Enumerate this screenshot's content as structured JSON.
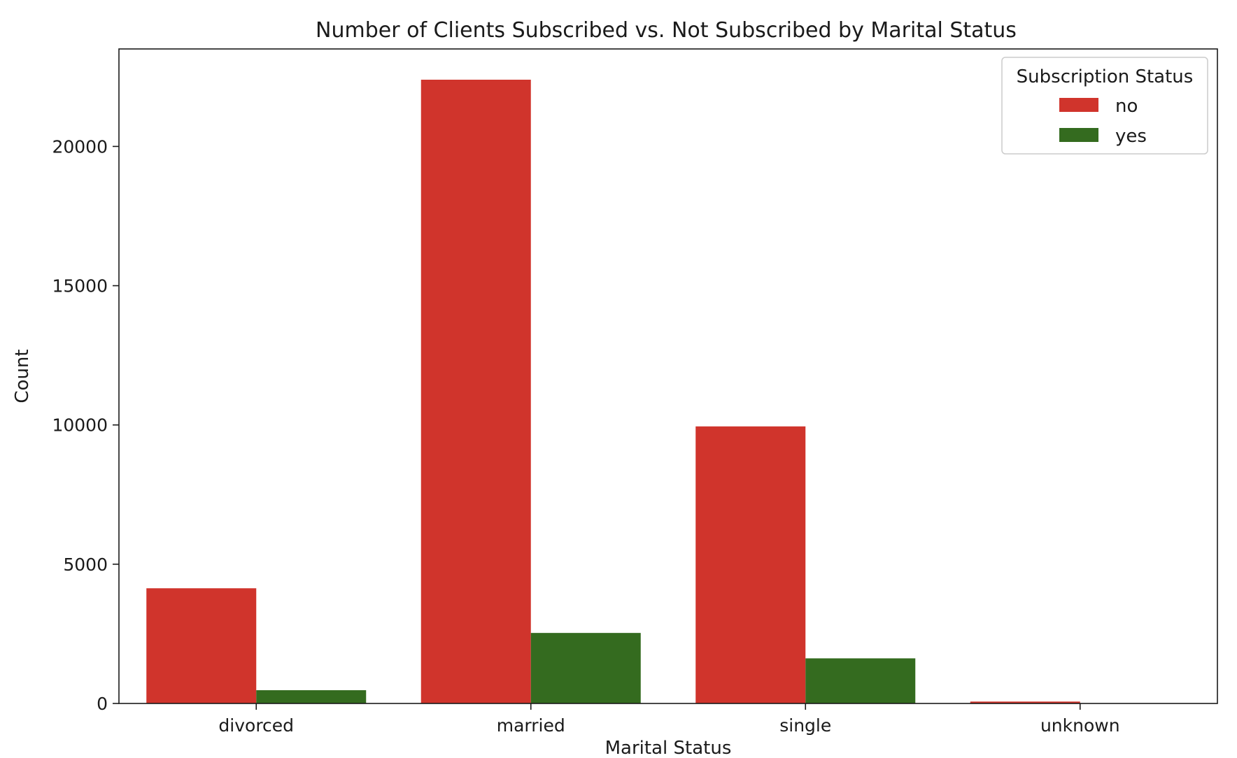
{
  "chart_data": {
    "type": "bar",
    "title": "Number of Clients Subscribed vs. Not Subscribed by Marital Status",
    "xlabel": "Marital Status",
    "ylabel": "Count",
    "categories": [
      "divorced",
      "married",
      "single",
      "unknown"
    ],
    "series": [
      {
        "name": "no",
        "color": "#d0342c",
        "values": [
          4136,
          22396,
          9948,
          68
        ]
      },
      {
        "name": "yes",
        "color": "#346b1f",
        "values": [
          476,
          2532,
          1620,
          12
        ]
      }
    ],
    "ylim": [
      0,
      23500
    ],
    "yticks": [
      0,
      5000,
      10000,
      15000,
      20000
    ],
    "legend": {
      "title": "Subscription Status",
      "placement": "top-right"
    },
    "grid": false
  }
}
